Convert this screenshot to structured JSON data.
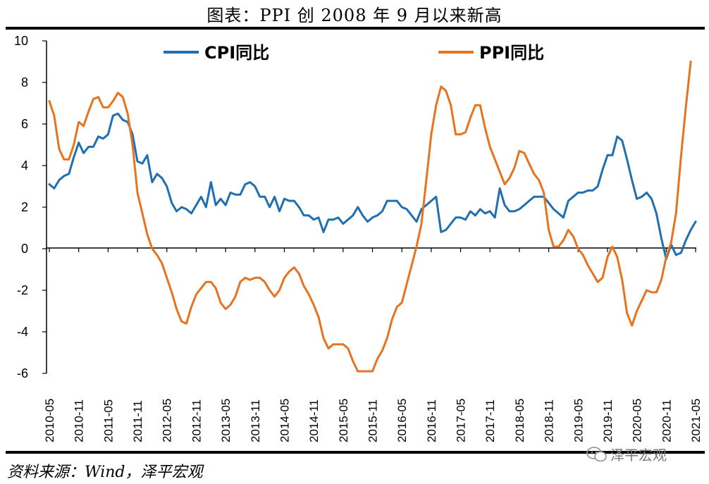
{
  "title": "图表：PPI 创 2008 年 9 月以来新高",
  "source": "资料来源：Wind，泽平宏观",
  "watermark": "泽平宏观",
  "colors": {
    "cpi": "#1f6fb2",
    "ppi": "#e8731f",
    "axis": "#000000"
  },
  "chart_data": {
    "type": "line",
    "title": "图表：PPI 创 2008 年 9 月以来新高",
    "xlabel": "",
    "ylabel": "",
    "ylim": [
      -6,
      10
    ],
    "yticks": [
      "10",
      "8",
      "6",
      "4",
      "2",
      "0",
      "-2",
      "-4",
      "-6"
    ],
    "xticks": [
      "2010-05",
      "2010-11",
      "2011-05",
      "2011-11",
      "2012-05",
      "2012-11",
      "2013-05",
      "2013-11",
      "2014-05",
      "2014-11",
      "2015-05",
      "2015-11",
      "2016-05",
      "2016-11",
      "2017-05",
      "2017-11",
      "2018-05",
      "2018-11",
      "2019-05",
      "2019-11",
      "2020-05",
      "2020-11",
      "2021-05"
    ],
    "legend": "top",
    "grid": false,
    "series": [
      {
        "name": "CPI同比",
        "values": [
          3.1,
          2.9,
          3.3,
          3.5,
          3.6,
          4.4,
          5.1,
          4.6,
          4.9,
          4.9,
          5.4,
          5.3,
          5.5,
          6.4,
          6.5,
          6.2,
          6.1,
          5.5,
          4.2,
          4.1,
          4.5,
          3.2,
          3.6,
          3.4,
          3.0,
          2.2,
          1.8,
          2.0,
          1.9,
          1.7,
          2.1,
          2.5,
          2.0,
          3.2,
          2.1,
          2.4,
          2.1,
          2.7,
          2.6,
          2.6,
          3.1,
          3.2,
          3.0,
          2.5,
          2.5,
          2.0,
          2.5,
          1.8,
          2.4,
          2.3,
          2.3,
          2.0,
          1.6,
          1.6,
          1.4,
          1.5,
          0.8,
          1.4,
          1.4,
          1.5,
          1.2,
          1.4,
          1.6,
          2.0,
          1.6,
          1.3,
          1.5,
          1.6,
          1.8,
          2.3,
          2.3,
          2.3,
          2.0,
          1.9,
          1.6,
          1.3,
          1.9,
          2.1,
          2.3,
          2.5,
          0.8,
          0.9,
          1.2,
          1.5,
          1.5,
          1.4,
          1.8,
          1.6,
          1.9,
          1.7,
          1.8,
          1.5,
          2.9,
          2.1,
          1.8,
          1.8,
          1.9,
          2.1,
          2.3,
          2.5,
          2.5,
          2.5,
          2.2,
          1.9,
          1.7,
          1.5,
          2.3,
          2.5,
          2.7,
          2.7,
          2.8,
          2.8,
          3.0,
          3.8,
          4.5,
          4.5,
          5.4,
          5.2,
          4.3,
          3.3,
          2.4,
          2.5,
          2.7,
          2.4,
          1.7,
          0.5,
          -0.5,
          0.2,
          -0.3,
          -0.2,
          0.4,
          0.9,
          1.3
        ],
        "color": "#1f6fb2"
      },
      {
        "name": "PPI同比",
        "values": [
          7.1,
          6.4,
          4.8,
          4.3,
          4.3,
          5.0,
          6.1,
          5.9,
          6.6,
          7.2,
          7.3,
          6.8,
          6.8,
          7.1,
          7.5,
          7.3,
          6.5,
          5.0,
          2.7,
          1.7,
          0.7,
          0.0,
          -0.3,
          -0.7,
          -1.4,
          -2.1,
          -2.9,
          -3.5,
          -3.6,
          -2.8,
          -2.2,
          -1.9,
          -1.6,
          -1.6,
          -1.9,
          -2.6,
          -2.9,
          -2.7,
          -2.3,
          -1.6,
          -1.4,
          -1.5,
          -1.4,
          -1.4,
          -1.6,
          -2.0,
          -2.3,
          -2.0,
          -1.4,
          -1.1,
          -0.9,
          -1.2,
          -1.8,
          -2.2,
          -2.7,
          -3.3,
          -4.3,
          -4.8,
          -4.6,
          -4.6,
          -4.6,
          -4.8,
          -5.4,
          -5.9,
          -5.9,
          -5.9,
          -5.9,
          -5.3,
          -4.9,
          -4.3,
          -3.4,
          -2.8,
          -2.6,
          -1.7,
          -0.8,
          0.1,
          1.2,
          3.3,
          5.5,
          6.9,
          7.8,
          7.6,
          6.9,
          5.5,
          5.5,
          5.6,
          6.3,
          6.9,
          6.9,
          5.8,
          4.9,
          4.3,
          3.7,
          3.1,
          3.4,
          3.9,
          4.7,
          4.6,
          4.1,
          3.6,
          3.3,
          2.7,
          0.9,
          0.1,
          0.1,
          0.4,
          0.9,
          0.6,
          0.0,
          -0.3,
          -0.8,
          -1.2,
          -1.6,
          -1.4,
          -0.4,
          0.1,
          -0.4,
          -1.5,
          -3.1,
          -3.7,
          -3.0,
          -2.5,
          -2.0,
          -2.1,
          -2.1,
          -1.5,
          -0.4,
          0.3,
          1.7,
          4.4,
          6.8,
          9.0
        ],
        "color": "#e8731f"
      }
    ]
  }
}
